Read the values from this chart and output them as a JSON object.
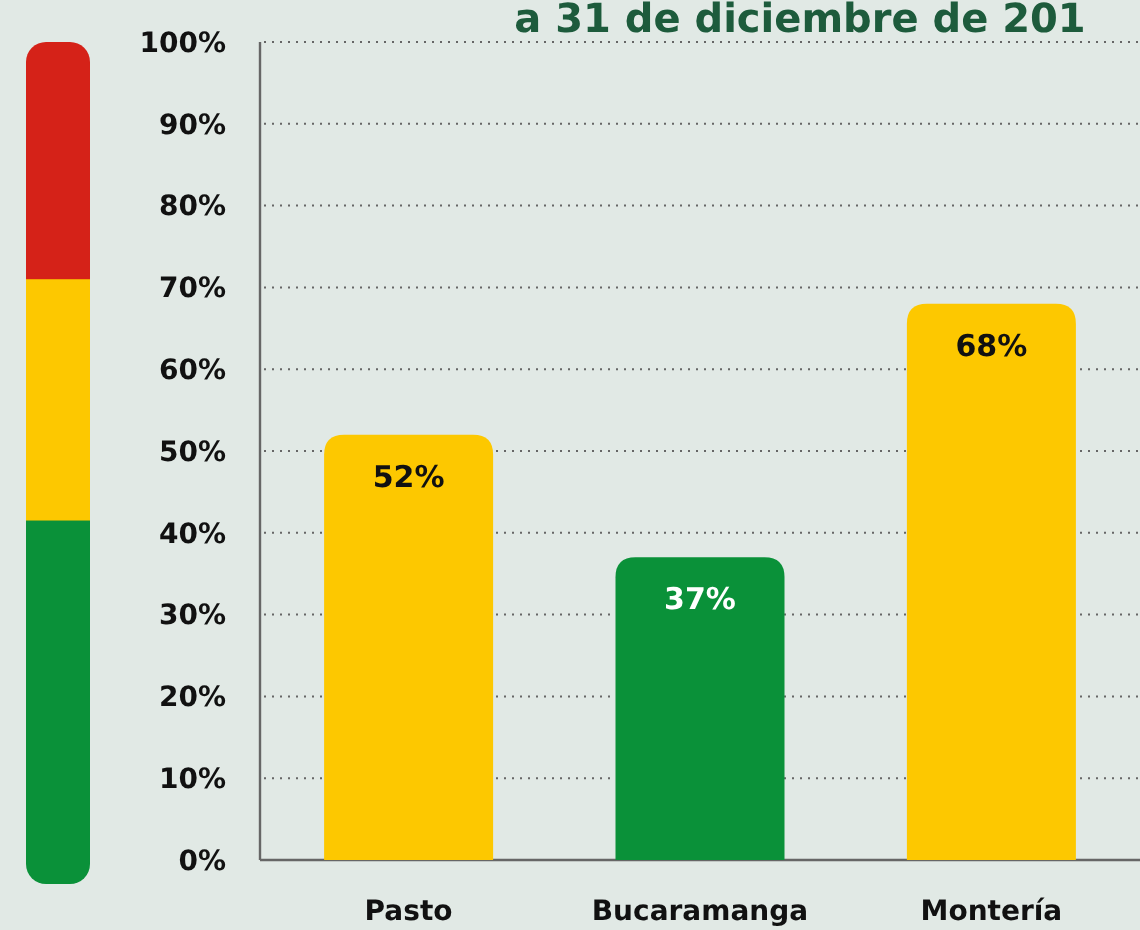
{
  "chart_data": {
    "type": "bar",
    "title": "a 31 de diciembre de 201",
    "categories": [
      "Pasto",
      "Bucaramanga",
      "Montería"
    ],
    "values": [
      52,
      37,
      68
    ],
    "colors": [
      "#fdc800",
      "#0a9139",
      "#fdc800"
    ],
    "value_labels": [
      "52%",
      "37%",
      "68%"
    ],
    "ylim": [
      0,
      100
    ],
    "yticks": [
      {
        "value": 0,
        "label": "0%"
      },
      {
        "value": 10,
        "label": "10%"
      },
      {
        "value": 20,
        "label": "20%"
      },
      {
        "value": 30,
        "label": "30%"
      },
      {
        "value": 40,
        "label": "40%"
      },
      {
        "value": 50,
        "label": "50%"
      },
      {
        "value": 60,
        "label": "60%"
      },
      {
        "value": 70,
        "label": "70%"
      },
      {
        "value": 80,
        "label": "80%"
      },
      {
        "value": 90,
        "label": "90%"
      },
      {
        "value": 100,
        "label": "100%"
      }
    ],
    "grid": "y"
  }
}
